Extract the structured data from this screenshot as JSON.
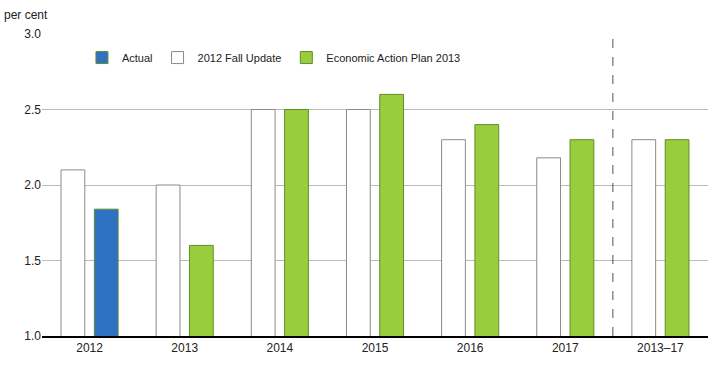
{
  "chart_data": {
    "type": "bar",
    "ylabel": "per cent",
    "categories": [
      "2012",
      "2013",
      "2014",
      "2015",
      "2016",
      "2017",
      "2013–17"
    ],
    "series": [
      {
        "name": "Actual",
        "color": "#2f72c4",
        "values": [
          1.84,
          null,
          null,
          null,
          null,
          null,
          null
        ]
      },
      {
        "name": "2012 Fall Update",
        "color": "#ffffff",
        "values": [
          2.1,
          2.0,
          2.5,
          2.5,
          2.3,
          2.18,
          2.3
        ]
      },
      {
        "name": "Economic Action Plan 2013",
        "color": "#9acd3c",
        "values": [
          null,
          1.6,
          2.5,
          2.6,
          2.4,
          2.3,
          2.3
        ]
      }
    ],
    "ylim": [
      1,
      3
    ],
    "yticks": [
      {
        "value": 1,
        "label": "1.0"
      },
      1.5,
      {
        "value": 2,
        "label": "2.0"
      },
      2.5,
      {
        "value": 3,
        "label": "3.0"
      }
    ],
    "grid": true,
    "legend": "top-left"
  }
}
